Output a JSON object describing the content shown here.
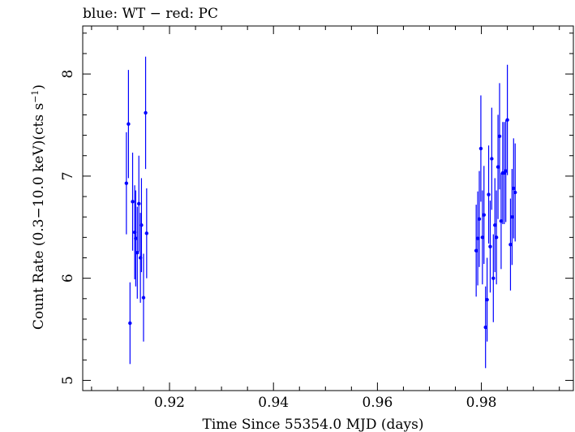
{
  "chart_data": {
    "type": "scatter",
    "title": "blue: WT − red: PC",
    "xlabel": "Time Since 55354.0 MJD (days)",
    "ylabel_main": "Count Rate (0.3−10.0 keV)(cts s",
    "ylabel_sup": "−1",
    "ylabel_end": ")",
    "xlim": [
      0.9033,
      0.9977
    ],
    "ylim": [
      4.9,
      8.47
    ],
    "xticks": [
      {
        "value": 0.92,
        "label": "0.92"
      },
      {
        "value": 0.94,
        "label": "0.94"
      },
      {
        "value": 0.96,
        "label": "0.96"
      },
      {
        "value": 0.98,
        "label": "0.98"
      }
    ],
    "yticks": [
      {
        "value": 5,
        "label": "5"
      },
      {
        "value": 6,
        "label": "6"
      },
      {
        "value": 7,
        "label": "7"
      },
      {
        "value": 8,
        "label": "8"
      }
    ],
    "grid": false,
    "series": [
      {
        "color": "#0000ff",
        "points": [
          {
            "x": 0.9117,
            "y": 6.93,
            "yerr": 0.5
          },
          {
            "x": 0.9121,
            "y": 7.51,
            "yerr": 0.53
          },
          {
            "x": 0.9124,
            "y": 5.56,
            "yerr": 0.4
          },
          {
            "x": 0.9129,
            "y": 6.75,
            "yerr": 0.48
          },
          {
            "x": 0.9133,
            "y": 6.45,
            "yerr": 0.46
          },
          {
            "x": 0.9135,
            "y": 6.39,
            "yerr": 0.47
          },
          {
            "x": 0.9138,
            "y": 6.25,
            "yerr": 0.45
          },
          {
            "x": 0.9141,
            "y": 6.73,
            "yerr": 0.47
          },
          {
            "x": 0.9144,
            "y": 6.2,
            "yerr": 0.44
          },
          {
            "x": 0.9146,
            "y": 6.52,
            "yerr": 0.46
          },
          {
            "x": 0.915,
            "y": 5.81,
            "yerr": 0.43
          },
          {
            "x": 0.9154,
            "y": 7.62,
            "yerr": 0.55
          },
          {
            "x": 0.9156,
            "y": 6.44,
            "yerr": 0.44
          },
          {
            "x": 0.979,
            "y": 6.27,
            "yerr": 0.45
          },
          {
            "x": 0.9793,
            "y": 6.39,
            "yerr": 0.46
          },
          {
            "x": 0.9796,
            "y": 6.58,
            "yerr": 0.47
          },
          {
            "x": 0.9799,
            "y": 7.27,
            "yerr": 0.52
          },
          {
            "x": 0.9802,
            "y": 6.4,
            "yerr": 0.46
          },
          {
            "x": 0.9805,
            "y": 6.62,
            "yerr": 0.48
          },
          {
            "x": 0.9808,
            "y": 5.52,
            "yerr": 0.4
          },
          {
            "x": 0.9811,
            "y": 5.79,
            "yerr": 0.41
          },
          {
            "x": 0.9814,
            "y": 6.82,
            "yerr": 0.48
          },
          {
            "x": 0.9817,
            "y": 6.31,
            "yerr": 0.45
          },
          {
            "x": 0.982,
            "y": 7.17,
            "yerr": 0.5
          },
          {
            "x": 0.9823,
            "y": 6.0,
            "yerr": 0.43
          },
          {
            "x": 0.9826,
            "y": 6.52,
            "yerr": 0.46
          },
          {
            "x": 0.9829,
            "y": 6.4,
            "yerr": 0.46
          },
          {
            "x": 0.9832,
            "y": 7.09,
            "yerr": 0.51
          },
          {
            "x": 0.9835,
            "y": 7.39,
            "yerr": 0.52
          },
          {
            "x": 0.9838,
            "y": 6.56,
            "yerr": 0.47
          },
          {
            "x": 0.9841,
            "y": 7.03,
            "yerr": 0.5
          },
          {
            "x": 0.9844,
            "y": 7.03,
            "yerr": 0.5
          },
          {
            "x": 0.9847,
            "y": 7.05,
            "yerr": 0.5
          },
          {
            "x": 0.985,
            "y": 7.55,
            "yerr": 0.54
          },
          {
            "x": 0.9856,
            "y": 6.33,
            "yerr": 0.45
          },
          {
            "x": 0.9859,
            "y": 6.6,
            "yerr": 0.47
          },
          {
            "x": 0.9862,
            "y": 6.88,
            "yerr": 0.49
          },
          {
            "x": 0.9865,
            "y": 6.84,
            "yerr": 0.48
          }
        ]
      }
    ]
  }
}
